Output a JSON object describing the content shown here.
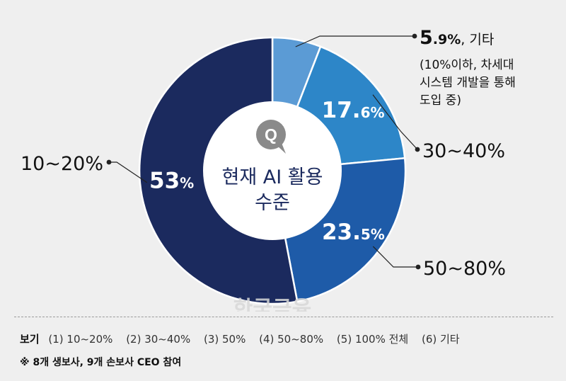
{
  "chart_data": {
    "type": "donut",
    "center": {
      "icon": "question-bubble-icon",
      "icon_text": "Q",
      "line1": "현재 AI 활용",
      "line2": "수준"
    },
    "slices": [
      {
        "name": "기타",
        "value": 5.9,
        "color": "#5b9bd5",
        "inner_label": "",
        "outer_big": "5",
        "outer_small": ".9%",
        "outer_text": ", 기타",
        "note": [
          "(10%이하, 차세대",
          "시스템 개발을 통해",
          "도입 중)"
        ]
      },
      {
        "name": "30~40%",
        "value": 17.6,
        "color": "#2d86c8",
        "inner_big": "17.",
        "inner_small": "6%",
        "outer_text": "30~40%"
      },
      {
        "name": "50~80%",
        "value": 23.5,
        "color": "#1e5ba8",
        "inner_big": "23.",
        "inner_small": "5%",
        "outer_text": "50~80%"
      },
      {
        "name": "10~20%",
        "value": 53,
        "color": "#1b2a5e",
        "inner_big": "53",
        "inner_small": "%",
        "outer_text": "10~20%"
      }
    ]
  },
  "legend": {
    "label": "보기",
    "options": [
      "(1) 10~20%",
      "(2) 30~40%",
      "(3) 50%",
      "(4) 50~80%",
      "(5) 100% 전체",
      "(6) 기타"
    ]
  },
  "note": "※ 8개 생보사, 9개 손보사 CEO 참여",
  "watermark": "한국금융"
}
